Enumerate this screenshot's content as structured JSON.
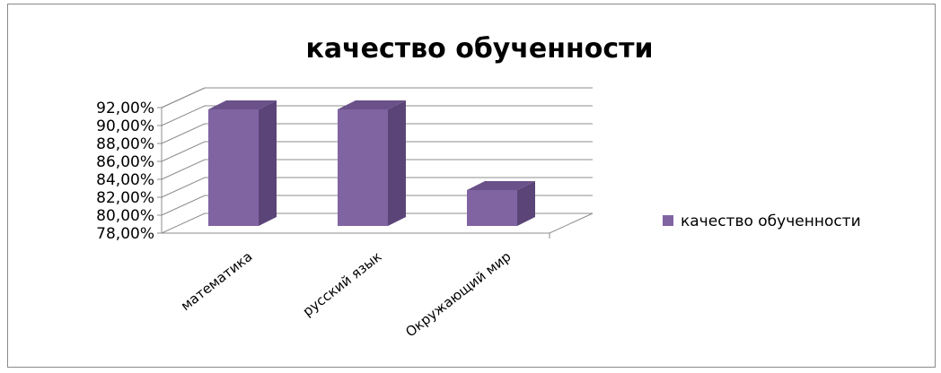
{
  "chart_data": {
    "type": "bar",
    "title": "качество обученности",
    "categories": [
      "математика",
      "русский язык",
      "Окружающий мир"
    ],
    "series": [
      {
        "name": "качество обученности",
        "values": [
          91.0,
          91.0,
          82.0
        ],
        "color": "#8064a2"
      }
    ],
    "yticks": [
      "78,00%",
      "80,00%",
      "82,00%",
      "84,00%",
      "86,00%",
      "88,00%",
      "90,00%",
      "92,00%"
    ],
    "ylim": [
      78,
      92
    ],
    "grid": true,
    "legend_position": "right",
    "style": "3d-column"
  }
}
